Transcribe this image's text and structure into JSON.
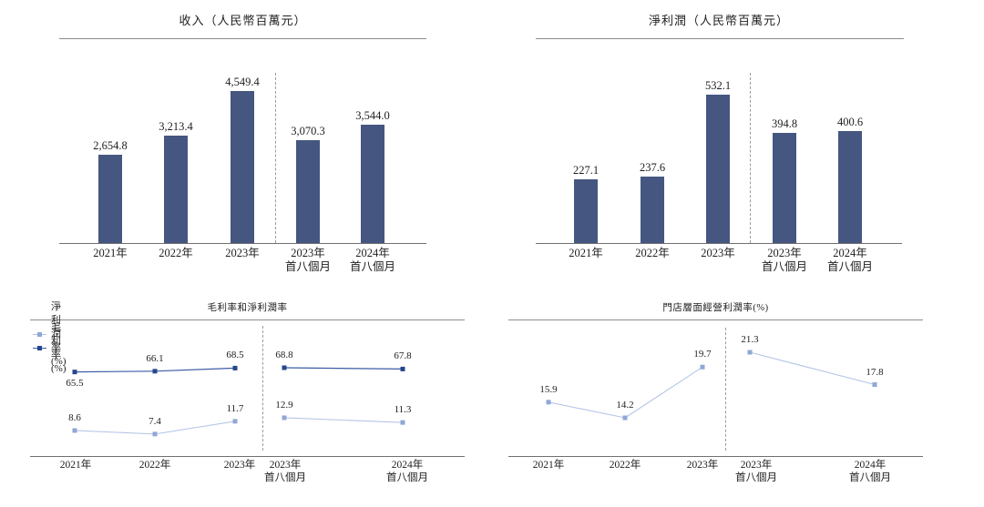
{
  "colors": {
    "bar": "#455680",
    "gross_line": "#3A5BA5",
    "gross_marker": "#24478C",
    "net_line": "#B5C5E6",
    "net_marker": "#8FA7D6",
    "axis": "#707070",
    "title_rule": "#8D8D8D",
    "separator": "#9B9B9B",
    "text": "#1E1E1E"
  },
  "chart_data": [
    {
      "id": "revenue",
      "type": "bar",
      "title": "收入（人民幣百萬元）",
      "unit": "人民幣百萬元",
      "categories": [
        [
          "2021年"
        ],
        [
          "2022年"
        ],
        [
          "2023年"
        ],
        [
          "2023年",
          "首八個月"
        ],
        [
          "2024年",
          "首八個月"
        ]
      ],
      "values": [
        2654.8,
        3213.4,
        4549.4,
        3070.3,
        3544.0
      ],
      "labels": [
        "2,654.8",
        "3,213.4",
        "4,549.4",
        "3,070.3",
        "3,544.0"
      ],
      "separator_after_index": 2,
      "ylim": [
        0,
        5000
      ],
      "grid": false
    },
    {
      "id": "net_profit",
      "type": "bar",
      "title": "淨利潤（人民幣百萬元）",
      "unit": "人民幣百萬元",
      "categories": [
        [
          "2021年"
        ],
        [
          "2022年"
        ],
        [
          "2023年"
        ],
        [
          "2023年",
          "首八個月"
        ],
        [
          "2024年",
          "首八個月"
        ]
      ],
      "values": [
        227.1,
        237.6,
        532.1,
        394.8,
        400.6
      ],
      "labels": [
        "227.1",
        "237.6",
        "532.1",
        "394.8",
        "400.6"
      ],
      "separator_after_index": 2,
      "ylim": [
        0,
        560
      ],
      "grid": false
    },
    {
      "id": "margins",
      "type": "line",
      "title": "毛利率和淨利潤率",
      "categories": [
        [
          "2021年"
        ],
        [
          "2022年"
        ],
        [
          "2023年"
        ],
        [
          "2023年",
          "首八個月"
        ],
        [
          "2024年",
          "首八個月"
        ]
      ],
      "series": [
        {
          "name": "淨利潤率(%)",
          "values": [
            8.6,
            7.4,
            11.7,
            12.9,
            11.3
          ],
          "labels": [
            "8.6",
            "7.4",
            "11.7",
            "12.9",
            "11.3"
          ]
        },
        {
          "name": "毛利率(%)",
          "values": [
            65.5,
            66.1,
            68.5,
            68.8,
            67.8
          ],
          "labels": [
            "65.5",
            "66.1",
            "68.5",
            "68.8",
            "67.8"
          ]
        }
      ],
      "legend_position": "top-left",
      "separator_after_index": 2,
      "grid": false
    },
    {
      "id": "store_margin",
      "type": "line",
      "title": "門店層面經營利潤率(%)",
      "categories": [
        [
          "2021年"
        ],
        [
          "2022年"
        ],
        [
          "2023年"
        ],
        [
          "2023年",
          "首八個月"
        ],
        [
          "2024年",
          "首八個月"
        ]
      ],
      "series": [
        {
          "name": "門店層面經營利潤率(%)",
          "values": [
            15.9,
            14.2,
            19.7,
            21.3,
            17.8
          ],
          "labels": [
            "15.9",
            "14.2",
            "19.7",
            "21.3",
            "17.8"
          ]
        }
      ],
      "separator_after_index": 2,
      "grid": false
    }
  ]
}
